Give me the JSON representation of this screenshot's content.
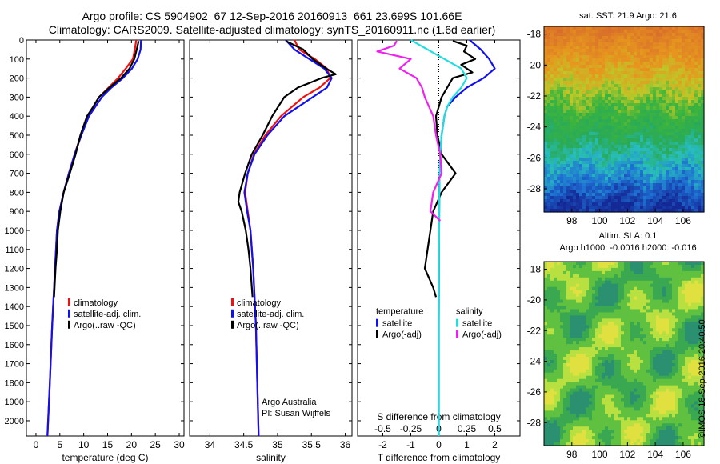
{
  "title_line1": "Argo profile: CS 5904902_67 12-Sep-2016 20160913_661 23.699S 101.66E",
  "title_line2": "Climatology: CARS2009. Satellite-adjusted climatology: synTS_20160911.nc (1.6d earlier)",
  "credit": "©IMOS 18-Sep-2016 20:40:50",
  "colors": {
    "climatology": "#ee1111",
    "satellite": "#1111ee",
    "argo": "#000000",
    "sat_salinity": "#22dddd",
    "argo_salinity": "#ee22ee"
  },
  "chart_data": [
    {
      "type": "line",
      "id": "temperature",
      "xlabel": "temperature (deg C)",
      "ylabel": "",
      "xlim": [
        -2,
        31
      ],
      "ylim": [
        2080,
        0
      ],
      "xticks": [
        0,
        5,
        10,
        15,
        20,
        25,
        30
      ],
      "yticks": [
        0,
        100,
        200,
        300,
        400,
        500,
        600,
        700,
        800,
        900,
        1000,
        1100,
        1200,
        1300,
        1400,
        1500,
        1600,
        1700,
        1800,
        1900,
        2000
      ],
      "legend": [
        "climatology",
        "satellite-adj. clim.",
        "Argo(..raw -QC)"
      ],
      "series": [
        {
          "name": "climatology",
          "depth": [
            0,
            50,
            100,
            150,
            200,
            250,
            300,
            400,
            500,
            600,
            700,
            800,
            900,
            1000,
            1200,
            1500,
            1800,
            2080
          ],
          "values": [
            21,
            20.7,
            20.3,
            18.8,
            17.2,
            15.2,
            13.2,
            10.9,
            9.4,
            8.1,
            6.9,
            5.8,
            4.9,
            4.4,
            4.0,
            3.4,
            2.9,
            2.4
          ]
        },
        {
          "name": "satellite-adj. clim.",
          "depth": [
            0,
            50,
            100,
            150,
            200,
            250,
            300,
            400,
            500,
            600,
            700,
            800,
            900,
            1000,
            1200,
            1500,
            1800,
            2080
          ],
          "values": [
            22,
            21.9,
            21.3,
            20.1,
            18.2,
            15.8,
            13.8,
            11.1,
            9.5,
            8.1,
            6.9,
            5.8,
            4.9,
            4.4,
            4.0,
            3.4,
            2.9,
            2.4
          ]
        },
        {
          "name": "Argo(..raw -QC)",
          "depth": [
            5,
            50,
            100,
            150,
            200,
            250,
            300,
            350,
            400,
            450,
            500,
            600,
            700,
            800,
            900,
            1000,
            1100,
            1200,
            1300,
            1350
          ],
          "values": [
            21.5,
            21.1,
            20.6,
            19.6,
            17.8,
            15.4,
            13.2,
            12.0,
            10.7,
            10.0,
            9.3,
            8.3,
            7.1,
            5.8,
            5.1,
            4.6,
            4.4,
            4.1,
            3.9,
            3.8
          ]
        }
      ]
    },
    {
      "type": "line",
      "id": "salinity",
      "xlabel": "salinity",
      "ylabel": "",
      "xlim": [
        33.7,
        36.1
      ],
      "ylim": [
        2080,
        0
      ],
      "xticks": [
        34,
        34.5,
        35,
        35.5,
        36
      ],
      "legend": [
        "climatology",
        "satellite-adj. clim.",
        "Argo(..raw -QC)"
      ],
      "annotation": [
        "Argo Australia",
        "PI: Susan Wijffels"
      ],
      "series": [
        {
          "name": "climatology",
          "depth": [
            0,
            50,
            100,
            150,
            200,
            250,
            300,
            400,
            500,
            600,
            700,
            800,
            900,
            1000,
            1200,
            1500,
            1800,
            2080
          ],
          "values": [
            35.25,
            35.32,
            35.55,
            35.73,
            35.78,
            35.62,
            35.38,
            35.05,
            34.82,
            34.65,
            34.56,
            34.52,
            34.56,
            34.6,
            34.64,
            34.68,
            34.7,
            34.72
          ]
        },
        {
          "name": "satellite-adj. clim.",
          "depth": [
            0,
            50,
            100,
            150,
            200,
            250,
            300,
            400,
            500,
            600,
            700,
            800,
            900,
            1000,
            1200,
            1500,
            1800,
            2080
          ],
          "values": [
            35.12,
            35.25,
            35.47,
            35.69,
            35.8,
            35.73,
            35.52,
            35.1,
            34.85,
            34.66,
            34.56,
            34.51,
            34.55,
            34.6,
            34.64,
            34.68,
            34.7,
            34.72
          ]
        },
        {
          "name": "Argo(..raw -QC)",
          "depth": [
            5,
            50,
            100,
            150,
            180,
            200,
            250,
            300,
            400,
            500,
            600,
            700,
            800,
            850,
            900,
            1000,
            1100,
            1200,
            1300,
            1350
          ],
          "values": [
            35.12,
            35.38,
            35.52,
            35.72,
            35.86,
            35.65,
            35.3,
            35.1,
            34.92,
            34.78,
            34.62,
            34.52,
            34.44,
            34.42,
            34.47,
            34.53,
            34.57,
            34.6,
            34.62,
            34.63
          ]
        }
      ]
    },
    {
      "type": "line",
      "id": "difference",
      "xlabel": "T difference from climatology",
      "xlabel_top": "S difference from climatology",
      "xlim": [
        -2.9,
        2.9
      ],
      "ylim": [
        2080,
        0
      ],
      "xticks": [
        -2,
        -1,
        0,
        1,
        2
      ],
      "xticks_top": [
        "-0.5",
        "-0.25",
        "0",
        "0.25",
        "0.5"
      ],
      "xticks_top_values": [
        -2,
        -1,
        0,
        1,
        2
      ],
      "legend_groups": [
        {
          "heading": "temperature",
          "items": [
            "satellite",
            "Argo(-adj)"
          ]
        },
        {
          "heading": "salinity",
          "items": [
            "satellite",
            "Argo(-adj)"
          ]
        }
      ],
      "series": [
        {
          "name": "temperature satellite",
          "depth": [
            0,
            50,
            100,
            150,
            200,
            250,
            300,
            350,
            400,
            500,
            600,
            700,
            800,
            1000,
            1500,
            2080
          ],
          "values": [
            1.1,
            1.5,
            1.8,
            2.0,
            1.6,
            1.0,
            0.6,
            0.3,
            0.2,
            0.1,
            0.05,
            0.03,
            0.02,
            0.01,
            0,
            0
          ]
        },
        {
          "name": "temperature Argo(-adj)",
          "depth": [
            5,
            30,
            60,
            100,
            130,
            170,
            200,
            250,
            300,
            400,
            500,
            600,
            700,
            800,
            900,
            1000,
            1100,
            1200,
            1300,
            1350
          ],
          "values": [
            0.5,
            1.0,
            0.9,
            1.3,
            0.8,
            1.2,
            0.5,
            0.3,
            0.1,
            -0.1,
            -0.05,
            0.1,
            0.6,
            0.1,
            -0.2,
            -0.3,
            -0.4,
            -0.5,
            -0.2,
            -0.1
          ]
        },
        {
          "name": "salinity satellite",
          "depth": [
            0,
            50,
            100,
            150,
            200,
            250,
            300,
            350,
            400,
            500,
            600,
            700,
            800,
            1000,
            1500,
            2080
          ],
          "values": [
            -1.0,
            -0.4,
            0.2,
            0.8,
            1.0,
            0.8,
            0.5,
            0.3,
            0.2,
            0.1,
            0.05,
            0.03,
            0.02,
            0.01,
            0,
            0
          ]
        },
        {
          "name": "salinity Argo(-adj)",
          "depth": [
            5,
            30,
            60,
            100,
            150,
            200,
            250,
            300,
            400,
            500,
            600,
            700,
            800,
            900,
            950
          ],
          "values": [
            -1.5,
            -1.6,
            -2.2,
            -1.0,
            -1.4,
            -0.8,
            -0.6,
            -0.5,
            -0.2,
            -0.1,
            0.05,
            0.1,
            -0.2,
            -0.3,
            0.05
          ]
        }
      ]
    }
  ],
  "maps": [
    {
      "id": "sst",
      "title": "sat. SST: 21.9  Argo: 21.6",
      "xlim": [
        96,
        107.5
      ],
      "ylim": [
        -29.5,
        -17.5
      ],
      "xticks": [
        98,
        100,
        102,
        104,
        106
      ],
      "yticks": [
        -18,
        -20,
        -22,
        -24,
        -26,
        -28
      ]
    },
    {
      "id": "sla",
      "title_lines": [
        "Altim. SLA: 0.1",
        "Argo h1000: -0.0016  h2000: -0.016"
      ],
      "xlim": [
        96,
        107.5
      ],
      "ylim": [
        -29.5,
        -17.5
      ],
      "xticks": [
        98,
        100,
        102,
        104,
        106
      ],
      "yticks": [
        -18,
        -20,
        -22,
        -24,
        -26,
        -28
      ]
    }
  ]
}
